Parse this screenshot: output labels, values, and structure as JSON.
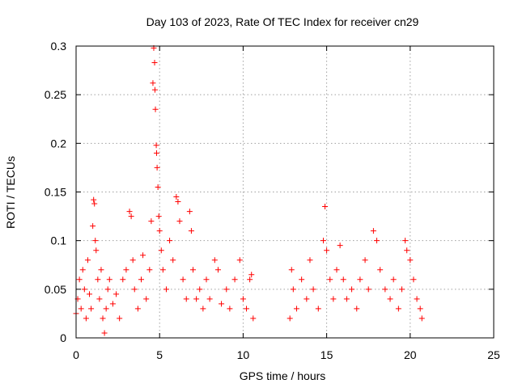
{
  "chart_data": {
    "type": "scatter",
    "title": "Day 103 of 2023, Rate Of TEC Index for receiver cn29",
    "xlabel": "GPS time / hours",
    "ylabel": "ROTI / TECUs",
    "xlim": [
      0,
      25
    ],
    "ylim": [
      0,
      0.3
    ],
    "xticks": [
      0,
      5,
      10,
      15,
      20,
      25
    ],
    "yticks": [
      0,
      0.05,
      0.1,
      0.15,
      0.2,
      0.25,
      0.3
    ],
    "xtick_labels": [
      "0",
      "5",
      "10",
      "15",
      "20",
      "25"
    ],
    "ytick_labels": [
      "0",
      "0.05",
      "0.1",
      "0.15",
      "0.2",
      "0.25",
      "0.3"
    ],
    "grid": true,
    "marker": "+",
    "color": "#ff0000",
    "series": [
      {
        "points": [
          [
            0.0,
            0.025
          ],
          [
            0.1,
            0.04
          ],
          [
            0.2,
            0.06
          ],
          [
            0.3,
            0.03
          ],
          [
            0.4,
            0.07
          ],
          [
            0.5,
            0.05
          ],
          [
            0.6,
            0.02
          ],
          [
            0.7,
            0.08
          ],
          [
            0.8,
            0.045
          ],
          [
            0.9,
            0.03
          ],
          [
            1.0,
            0.115
          ],
          [
            1.05,
            0.142
          ],
          [
            1.1,
            0.138
          ],
          [
            1.15,
            0.1
          ],
          [
            1.2,
            0.09
          ],
          [
            1.3,
            0.06
          ],
          [
            1.4,
            0.04
          ],
          [
            1.5,
            0.07
          ],
          [
            1.6,
            0.02
          ],
          [
            1.7,
            0.005
          ],
          [
            1.8,
            0.03
          ],
          [
            1.9,
            0.05
          ],
          [
            2.0,
            0.06
          ],
          [
            2.2,
            0.035
          ],
          [
            2.4,
            0.045
          ],
          [
            2.6,
            0.02
          ],
          [
            2.8,
            0.06
          ],
          [
            3.0,
            0.07
          ],
          [
            3.2,
            0.13
          ],
          [
            3.3,
            0.125
          ],
          [
            3.4,
            0.08
          ],
          [
            3.5,
            0.05
          ],
          [
            3.7,
            0.03
          ],
          [
            3.9,
            0.06
          ],
          [
            4.0,
            0.085
          ],
          [
            4.2,
            0.04
          ],
          [
            4.4,
            0.07
          ],
          [
            4.5,
            0.12
          ],
          [
            4.6,
            0.262
          ],
          [
            4.65,
            0.298
          ],
          [
            4.7,
            0.283
          ],
          [
            4.72,
            0.255
          ],
          [
            4.75,
            0.235
          ],
          [
            4.8,
            0.198
          ],
          [
            4.82,
            0.19
          ],
          [
            4.85,
            0.175
          ],
          [
            4.9,
            0.155
          ],
          [
            4.95,
            0.125
          ],
          [
            5.0,
            0.11
          ],
          [
            5.1,
            0.09
          ],
          [
            5.2,
            0.07
          ],
          [
            5.4,
            0.05
          ],
          [
            5.6,
            0.1
          ],
          [
            5.8,
            0.08
          ],
          [
            6.0,
            0.145
          ],
          [
            6.1,
            0.14
          ],
          [
            6.2,
            0.12
          ],
          [
            6.4,
            0.06
          ],
          [
            6.6,
            0.04
          ],
          [
            6.8,
            0.13
          ],
          [
            6.9,
            0.11
          ],
          [
            7.0,
            0.07
          ],
          [
            7.2,
            0.04
          ],
          [
            7.4,
            0.05
          ],
          [
            7.6,
            0.03
          ],
          [
            7.8,
            0.06
          ],
          [
            8.0,
            0.04
          ],
          [
            8.3,
            0.08
          ],
          [
            8.5,
            0.07
          ],
          [
            8.7,
            0.035
          ],
          [
            9.0,
            0.05
          ],
          [
            9.2,
            0.03
          ],
          [
            9.5,
            0.06
          ],
          [
            9.8,
            0.08
          ],
          [
            10.0,
            0.04
          ],
          [
            10.2,
            0.03
          ],
          [
            10.4,
            0.06
          ],
          [
            10.5,
            0.065
          ],
          [
            10.6,
            0.02
          ],
          [
            12.8,
            0.02
          ],
          [
            12.9,
            0.07
          ],
          [
            13.0,
            0.05
          ],
          [
            13.2,
            0.03
          ],
          [
            13.5,
            0.06
          ],
          [
            13.8,
            0.04
          ],
          [
            14.0,
            0.08
          ],
          [
            14.2,
            0.05
          ],
          [
            14.5,
            0.03
          ],
          [
            14.8,
            0.1
          ],
          [
            14.9,
            0.135
          ],
          [
            15.0,
            0.09
          ],
          [
            15.2,
            0.06
          ],
          [
            15.4,
            0.04
          ],
          [
            15.6,
            0.07
          ],
          [
            15.8,
            0.095
          ],
          [
            16.0,
            0.06
          ],
          [
            16.2,
            0.04
          ],
          [
            16.5,
            0.05
          ],
          [
            16.8,
            0.03
          ],
          [
            17.0,
            0.06
          ],
          [
            17.3,
            0.08
          ],
          [
            17.5,
            0.05
          ],
          [
            17.8,
            0.11
          ],
          [
            18.0,
            0.1
          ],
          [
            18.2,
            0.07
          ],
          [
            18.5,
            0.05
          ],
          [
            18.8,
            0.04
          ],
          [
            19.0,
            0.06
          ],
          [
            19.3,
            0.03
          ],
          [
            19.5,
            0.05
          ],
          [
            19.7,
            0.1
          ],
          [
            19.8,
            0.09
          ],
          [
            20.0,
            0.08
          ],
          [
            20.2,
            0.06
          ],
          [
            20.4,
            0.04
          ],
          [
            20.6,
            0.03
          ],
          [
            20.7,
            0.02
          ]
        ]
      }
    ]
  }
}
